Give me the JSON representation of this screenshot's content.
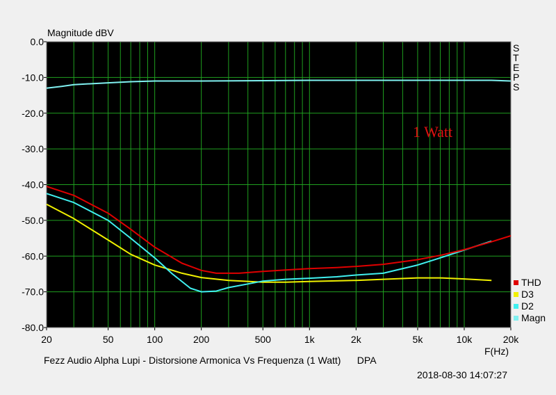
{
  "chart_data": {
    "type": "line",
    "ylabel": "Magnitude dBV",
    "xlabel": "F(Hz)",
    "side_label": "STEPS",
    "annotation": "1 Watt",
    "caption": "Fezz Audio Alpha Lupi - Distorsione Armonica Vs Frequenza (1 Watt)      DPA",
    "timestamp": "2018-08-30 14:07:27",
    "x_scale": "log",
    "xlim": [
      20,
      20000
    ],
    "ylim": [
      -80,
      0
    ],
    "grid": true,
    "legend_position": "bottom-right",
    "x_ticks": [
      {
        "value": 20,
        "label": "20"
      },
      {
        "value": 50,
        "label": "50"
      },
      {
        "value": 100,
        "label": "100"
      },
      {
        "value": 200,
        "label": "200"
      },
      {
        "value": 500,
        "label": "500"
      },
      {
        "value": 1000,
        "label": "1k"
      },
      {
        "value": 2000,
        "label": "2k"
      },
      {
        "value": 5000,
        "label": "5k"
      },
      {
        "value": 10000,
        "label": "10k"
      },
      {
        "value": 20000,
        "label": "20k"
      }
    ],
    "y_ticks": [
      {
        "value": 0,
        "label": "0.0"
      },
      {
        "value": -10,
        "label": "-10.0"
      },
      {
        "value": -20,
        "label": "-20.0"
      },
      {
        "value": -30,
        "label": "-30.0"
      },
      {
        "value": -40,
        "label": "-40.0"
      },
      {
        "value": -50,
        "label": "-50.0"
      },
      {
        "value": -60,
        "label": "-60.0"
      },
      {
        "value": -70,
        "label": "-70.0"
      },
      {
        "value": -80,
        "label": "-80.0"
      }
    ],
    "series": [
      {
        "name": "THD",
        "color": "#e00000",
        "x": [
          20,
          30,
          50,
          70,
          100,
          150,
          200,
          250,
          350,
          500,
          700,
          1000,
          1500,
          2000,
          3000,
          5000,
          7000,
          10000,
          15000,
          20000
        ],
        "y": [
          -40.5,
          -43,
          -48,
          -52.5,
          -57.5,
          -62,
          -64,
          -64.8,
          -64.8,
          -64.3,
          -63.9,
          -63.5,
          -63.2,
          -62.9,
          -62.3,
          -61.0,
          -59.8,
          -58.2,
          -56.0,
          -54.3
        ]
      },
      {
        "name": "D3",
        "color": "#f0f000",
        "x": [
          20,
          30,
          50,
          70,
          100,
          150,
          200,
          300,
          500,
          700,
          1000,
          2000,
          3000,
          5000,
          7000,
          10000,
          15000
        ],
        "y": [
          -45.5,
          -49.5,
          -55.5,
          -59.5,
          -62.5,
          -64.8,
          -66,
          -66.8,
          -67.3,
          -67.3,
          -67.1,
          -66.8,
          -66.5,
          -66.1,
          -66.1,
          -66.4,
          -66.8
        ]
      },
      {
        "name": "D2",
        "color": "#40f0f0",
        "x": [
          20,
          30,
          50,
          70,
          100,
          130,
          170,
          200,
          250,
          300,
          400,
          500,
          700,
          1000,
          1500,
          2000,
          3000,
          5000,
          7000,
          10000,
          15000
        ],
        "y": [
          -42.5,
          -45,
          -50,
          -55,
          -60.5,
          -65,
          -69,
          -70,
          -69.8,
          -68.8,
          -67.8,
          -67,
          -66.5,
          -66.2,
          -65.8,
          -65.3,
          -64.8,
          -62.5,
          -60.5,
          -58.3,
          -55.8
        ]
      },
      {
        "name": "Magn",
        "color": "#80f0f0",
        "x": [
          20,
          25,
          30,
          50,
          70,
          100,
          200,
          500,
          1000,
          2000,
          5000,
          10000,
          15000,
          20000
        ],
        "y": [
          -13,
          -12.5,
          -12,
          -11.5,
          -11.2,
          -11,
          -11,
          -10.9,
          -10.8,
          -10.8,
          -10.8,
          -10.8,
          -10.8,
          -11
        ]
      }
    ]
  }
}
